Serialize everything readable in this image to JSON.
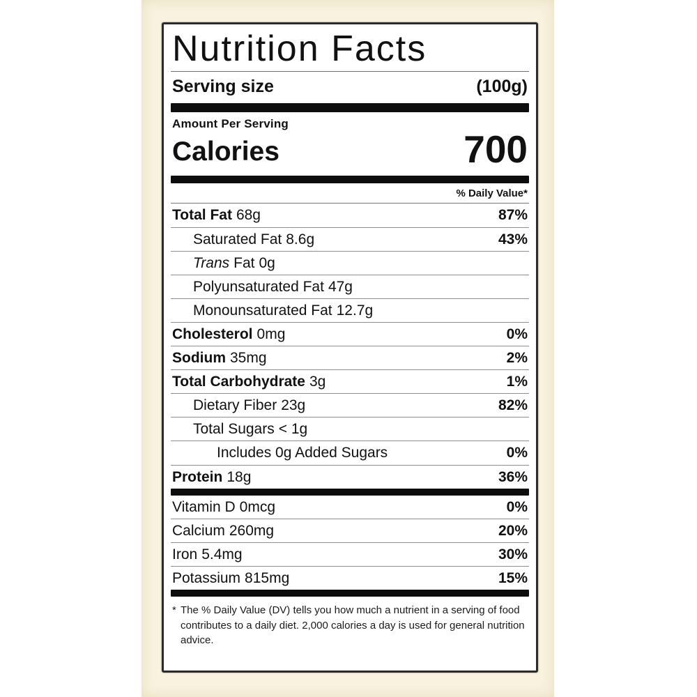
{
  "label": {
    "title": "Nutrition Facts",
    "serving": {
      "label": "Serving size",
      "value": "(100g)"
    },
    "amount_per_serving": "Amount Per Serving",
    "calories": {
      "label": "Calories",
      "value": "700"
    },
    "daily_value_header": "% Daily Value*",
    "rows": [
      {
        "name": "Total Fat",
        "amount": "68g",
        "dv": "87%"
      },
      {
        "name": "Saturated Fat",
        "amount": "8.6g",
        "dv": "43%"
      },
      {
        "name_italic": "Trans",
        "name": "Fat",
        "amount": "0g",
        "dv": ""
      },
      {
        "name": "Polyunsaturated Fat",
        "amount": "47g",
        "dv": ""
      },
      {
        "name": "Monounsaturated Fat",
        "amount": "12.7g",
        "dv": ""
      },
      {
        "name": "Cholesterol",
        "amount": "0mg",
        "dv": "0%"
      },
      {
        "name": "Sodium",
        "amount": "35mg",
        "dv": "2%"
      },
      {
        "name": "Total Carbohydrate",
        "amount": "3g",
        "dv": "1%"
      },
      {
        "name": "Dietary Fiber",
        "amount": "23g",
        "dv": "82%"
      },
      {
        "name": "Total Sugars",
        "amount": "< 1g",
        "dv": ""
      },
      {
        "name": "Includes 0g Added Sugars",
        "amount": "",
        "dv": "0%"
      },
      {
        "name": "Protein",
        "amount": "18g",
        "dv": "36%"
      }
    ],
    "micronutrients": [
      {
        "name": "Vitamin D",
        "amount": "0mcg",
        "dv": "0%"
      },
      {
        "name": "Calcium",
        "amount": "260mg",
        "dv": "20%"
      },
      {
        "name": "Iron",
        "amount": "5.4mg",
        "dv": "30%"
      },
      {
        "name": "Potassium",
        "amount": "815mg",
        "dv": "15%"
      }
    ],
    "footnote_marker": "*",
    "footnote": "The % Daily Value (DV) tells you how much a nutrient in a serving of food contributes to a daily diet. 2,000 calories a day is used for general nutrition advice."
  },
  "colors": {
    "label_background": "#ffffff",
    "backdrop": "#f8f2df",
    "text": "#111111",
    "divider_bar": "#0d0d0d",
    "hairline": "#8d8d8d",
    "border": "#2b2b2b"
  }
}
